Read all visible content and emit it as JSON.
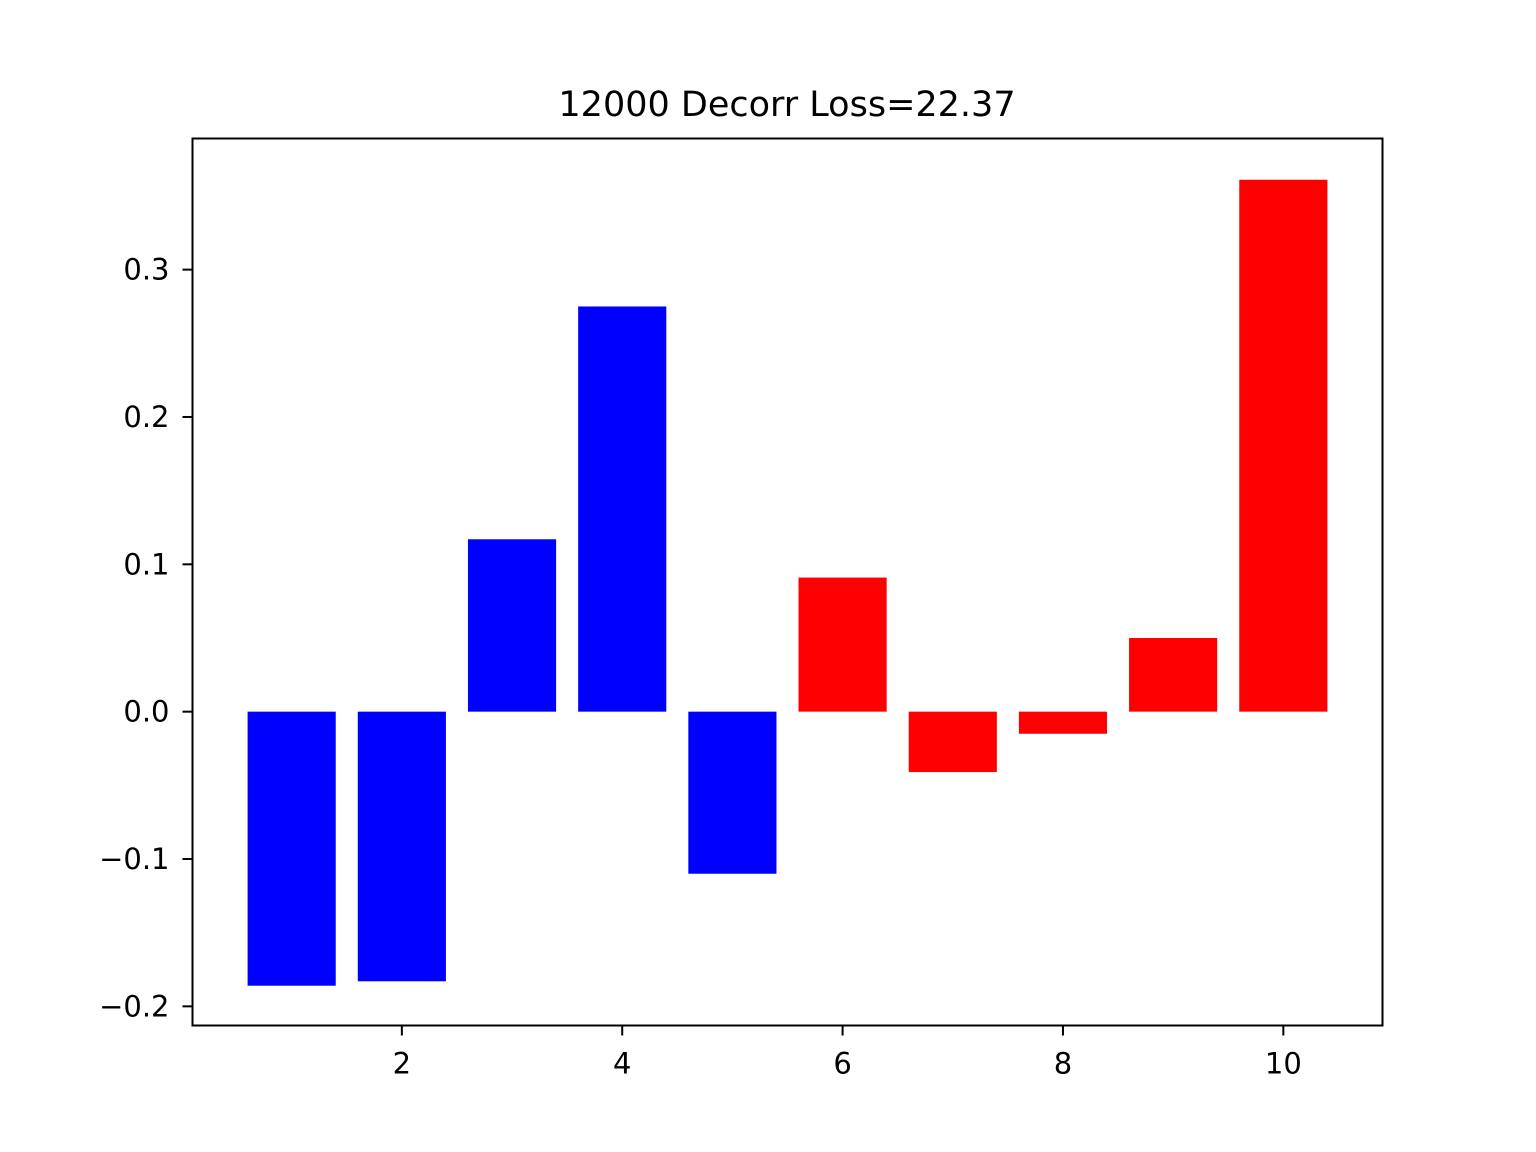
{
  "chart_data": {
    "type": "bar",
    "title": "12000 Decorr Loss=22.37",
    "xlabel": "",
    "ylabel": "",
    "x": [
      1,
      2,
      3,
      4,
      5,
      6,
      7,
      8,
      9,
      10
    ],
    "values": [
      -0.186,
      -0.183,
      0.117,
      0.275,
      -0.11,
      0.091,
      -0.041,
      -0.015,
      0.05,
      0.361
    ],
    "colors": [
      "#0000ff",
      "#0000ff",
      "#0000ff",
      "#0000ff",
      "#0000ff",
      "#ff0000",
      "#ff0000",
      "#ff0000",
      "#ff0000",
      "#ff0000"
    ],
    "xlim": [
      0.1,
      10.9
    ],
    "ylim": [
      -0.213,
      0.389
    ],
    "xticks": [
      2,
      4,
      6,
      8,
      10
    ],
    "xtick_labels": [
      "2",
      "4",
      "6",
      "8",
      "10"
    ],
    "yticks": [
      -0.2,
      -0.1,
      0.0,
      0.1,
      0.2,
      0.3
    ],
    "ytick_labels": [
      "−0.2",
      "−0.1",
      "0.0",
      "0.1",
      "0.2",
      "0.3"
    ],
    "grid": false,
    "legend": "none"
  }
}
